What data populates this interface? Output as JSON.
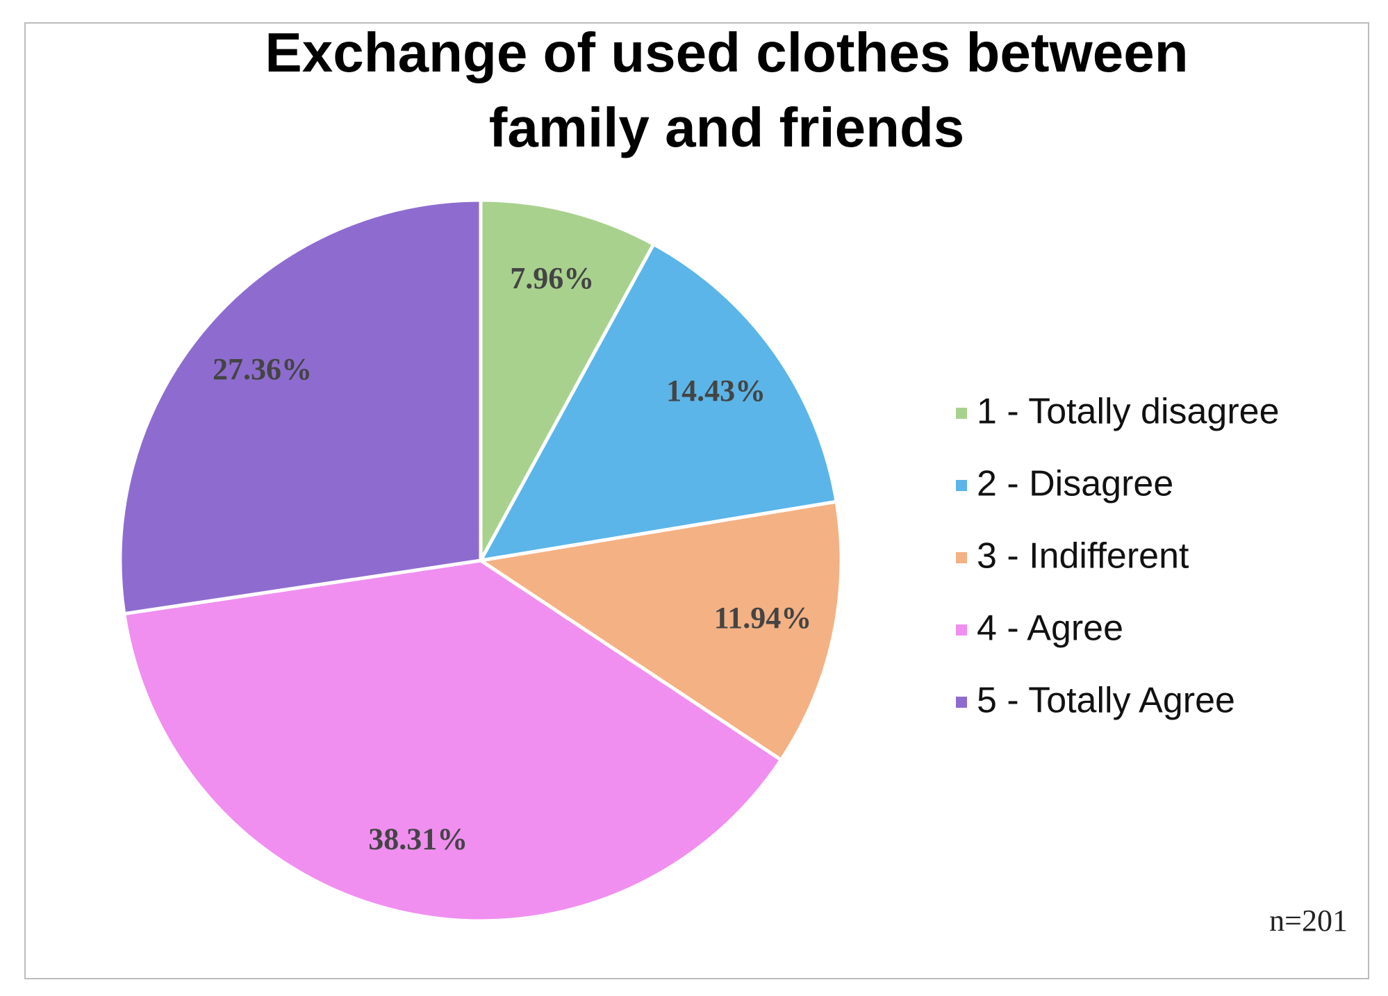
{
  "chart_data": {
    "type": "pie",
    "title": "Exchange of used clothes between family and friends",
    "categories": [
      "1 - Totally disagree",
      "2 - Disagree",
      "3 - Indifferent",
      "4 - Agree",
      "5 - Totally Agree"
    ],
    "values": [
      7.96,
      14.43,
      11.94,
      38.31,
      27.36
    ],
    "value_labels": [
      "7.96%",
      "14.43%",
      "11.94%",
      "38.31%",
      "27.36%"
    ],
    "colors": [
      "#a9d18e",
      "#5bb5e8",
      "#f4b183",
      "#f08ff0",
      "#8e6ccf"
    ],
    "annotation": "n=201"
  }
}
